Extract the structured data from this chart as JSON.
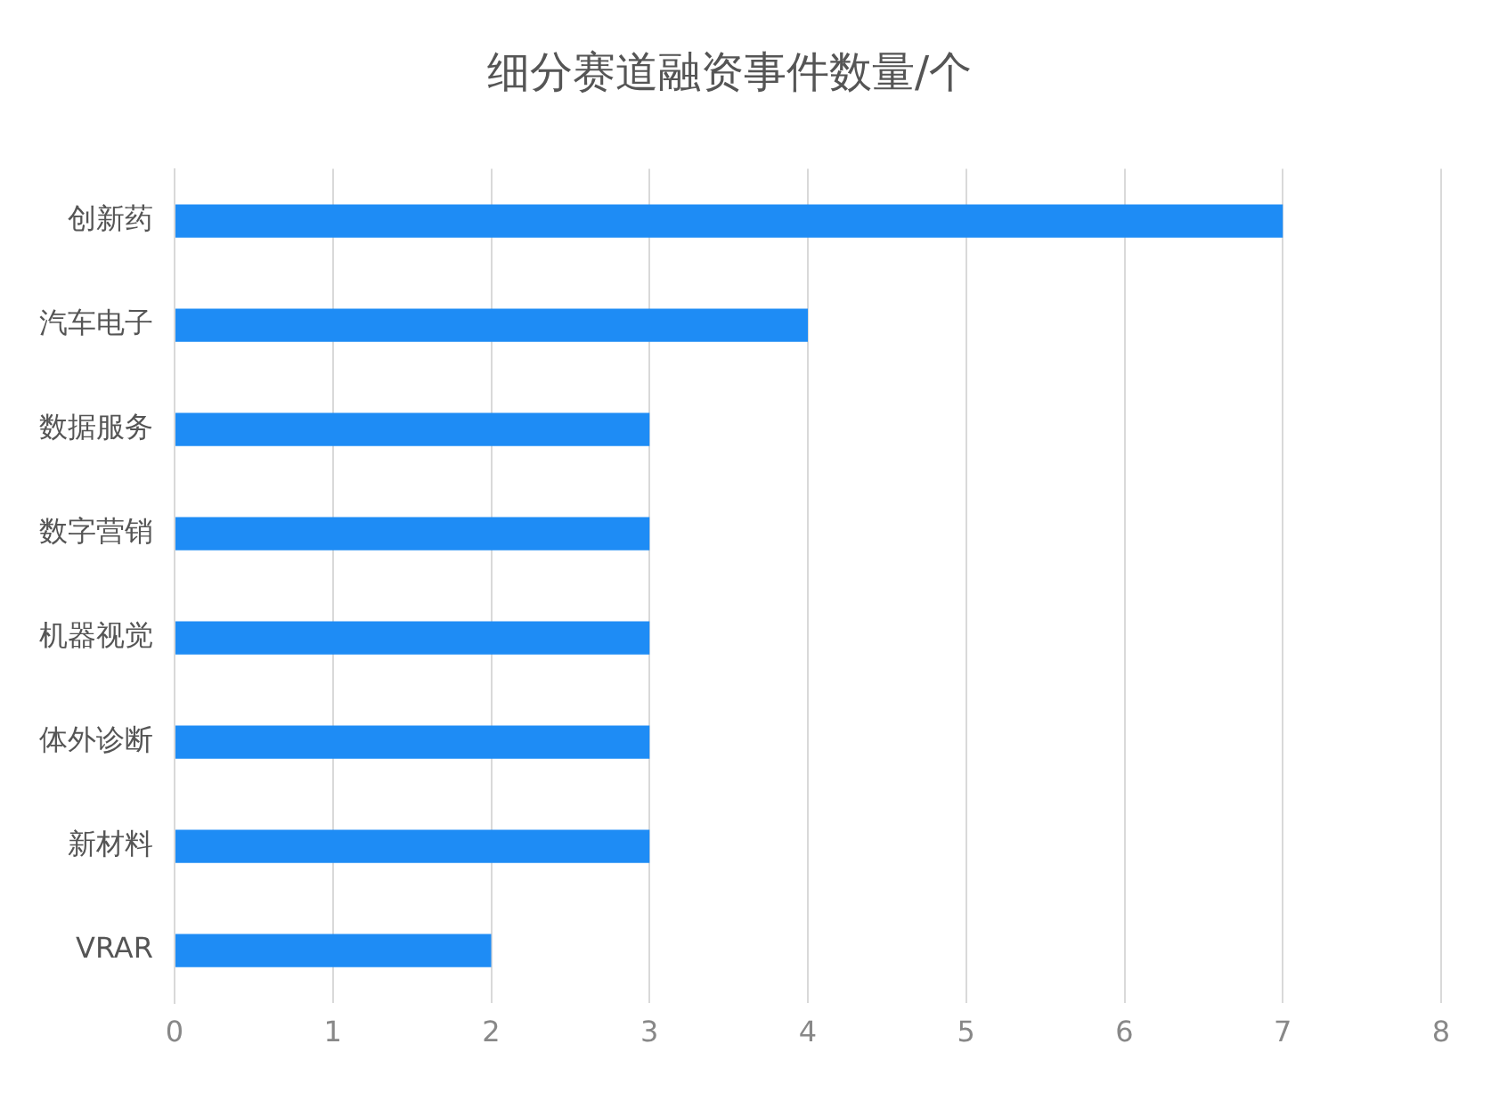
{
  "chart_data": {
    "type": "bar",
    "orientation": "horizontal",
    "title": "细分赛道融资事件数量/个",
    "categories": [
      "创新药",
      "汽车电子",
      "数据服务",
      "数字营销",
      "机器视觉",
      "体外诊断",
      "新材料",
      "VRAR"
    ],
    "values": [
      7,
      4,
      3,
      3,
      3,
      3,
      3,
      2
    ],
    "color": "#1e8cf5",
    "xlim": [
      0,
      8
    ],
    "xticks": [
      0,
      1,
      2,
      3,
      4,
      5,
      6,
      7,
      8
    ],
    "grid": "x",
    "legend": false
  }
}
